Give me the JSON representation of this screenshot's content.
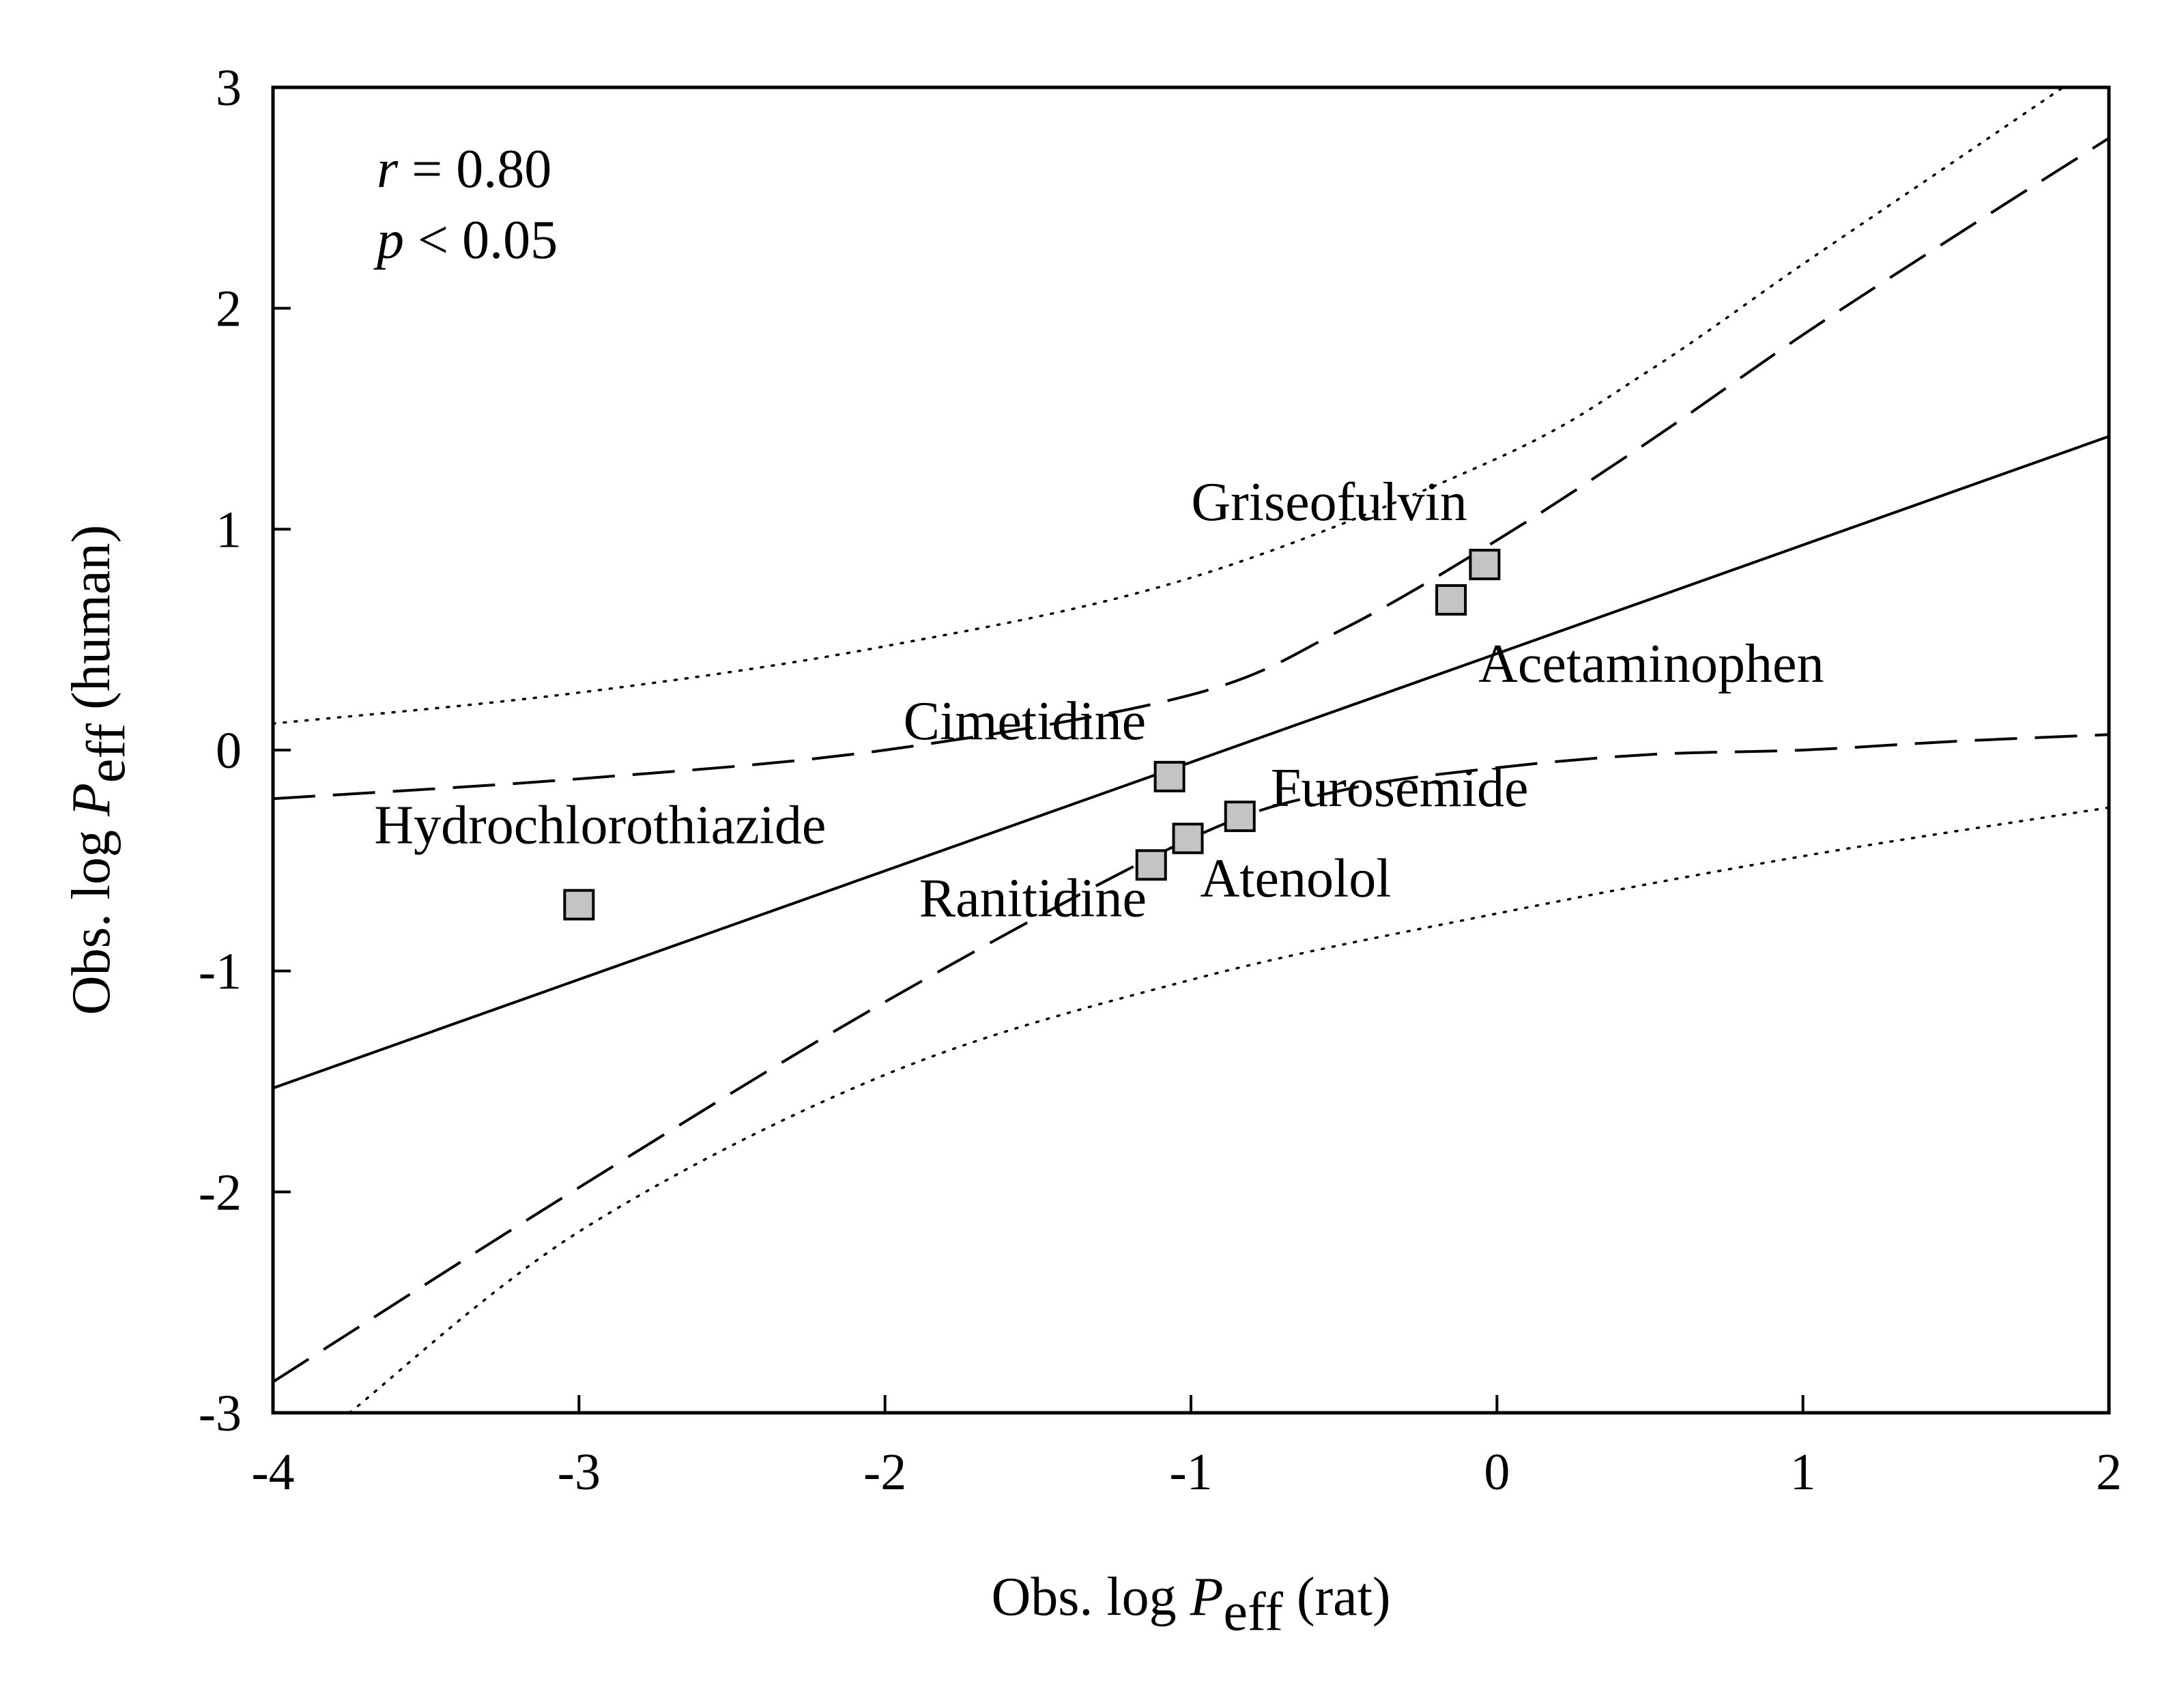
{
  "chart_data": {
    "type": "scatter",
    "xlabel": {
      "prefix": "Obs. log ",
      "var": "P",
      "sub": "eff",
      "suffix": " (rat)"
    },
    "ylabel": {
      "prefix": "Obs. log ",
      "var": "P",
      "sub": "eff",
      "suffix": " (human)"
    },
    "xlim": [
      -4,
      2
    ],
    "ylim": [
      -3,
      3
    ],
    "xticks": [
      -4,
      -3,
      -2,
      -1,
      0,
      1,
      2
    ],
    "yticks": [
      -3,
      -2,
      -1,
      0,
      1,
      2,
      3
    ],
    "xtick_labels": [
      "-4",
      "-3",
      "-2",
      "-1",
      "0",
      "1",
      "2"
    ],
    "ytick_labels": [
      "-3",
      "-2",
      "-1",
      "0",
      "1",
      "2",
      "3"
    ],
    "grid": false,
    "annotations": {
      "r_var": "r",
      "r_text": " = 0.80",
      "p_var": "p",
      "p_text": " < 0.05"
    },
    "points": [
      {
        "name": "Hydrochlorothiazide",
        "x": -3.0,
        "y": -0.7
      },
      {
        "name": "Ranitidine",
        "x": -1.13,
        "y": -0.52
      },
      {
        "name": "Cimetidine",
        "x": -1.07,
        "y": -0.12
      },
      {
        "name": "Atenolol",
        "x": -1.01,
        "y": -0.4
      },
      {
        "name": "Furosemide",
        "x": -0.84,
        "y": -0.3
      },
      {
        "name": "Acetaminophen",
        "x": -0.15,
        "y": 0.68
      },
      {
        "name": "Griseofulvin",
        "x": -0.04,
        "y": 0.84
      }
    ],
    "regression_line": {
      "x": [
        -4,
        2
      ],
      "y": [
        -1.53,
        1.42
      ]
    },
    "confidence_band_upper": {
      "x": [
        -4,
        -3,
        -2,
        -1,
        -0.5,
        0,
        0.5,
        1,
        1.5,
        2
      ],
      "y": [
        -0.22,
        -0.13,
        0.0,
        0.25,
        0.55,
        0.95,
        1.4,
        1.88,
        2.33,
        2.77
      ]
    },
    "confidence_band_lower": {
      "x": [
        -4,
        -3,
        -2,
        -1,
        -0.5,
        0,
        0.5,
        1,
        1.5,
        2
      ],
      "y": [
        -2.86,
        -1.98,
        -1.14,
        -0.4,
        -0.18,
        -0.08,
        -0.02,
        0.0,
        0.04,
        0.07
      ]
    },
    "prediction_band_upper": {
      "x": [
        -4,
        -3,
        -2,
        -1,
        0,
        0.5,
        1,
        1.5,
        1.85
      ],
      "y": [
        0.12,
        0.26,
        0.47,
        0.78,
        1.32,
        1.72,
        2.2,
        2.67,
        3.0
      ]
    },
    "prediction_band_lower": {
      "x": [
        -3.75,
        -3,
        -2,
        -1,
        0,
        1,
        2
      ],
      "y": [
        -3.0,
        -2.18,
        -1.47,
        -1.04,
        -0.74,
        -0.48,
        -0.26
      ]
    }
  }
}
